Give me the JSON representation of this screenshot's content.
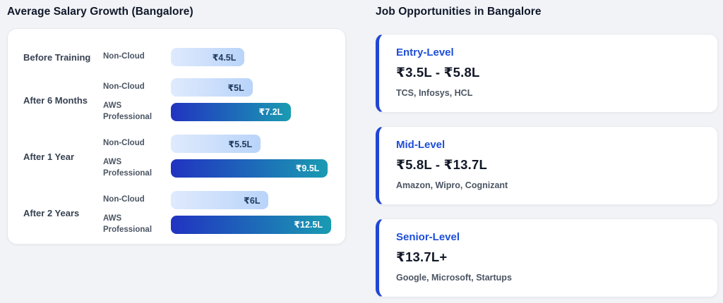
{
  "left": {
    "title": "Average Salary Growth (Bangalore)"
  },
  "right": {
    "title": "Job Opportunities in Bangalore",
    "accent_color": "#1d4ed8",
    "cards": [
      {
        "level": "Entry-Level",
        "range": "₹3.5L - ₹5.8L",
        "companies": "TCS, Infosys, HCL"
      },
      {
        "level": "Mid-Level",
        "range": "₹5.8L - ₹13.7L",
        "companies": "Amazon, Wipro, Cognizant"
      },
      {
        "level": "Senior-Level",
        "range": "₹13.7L+",
        "companies": "Google, Microsoft, Startups"
      }
    ]
  },
  "chart_data": {
    "type": "bar",
    "orientation": "horizontal",
    "title": "Average Salary Growth (Bangalore)",
    "unit": "INR lakh per annum",
    "series_names": [
      "Non-Cloud",
      "AWS Professional"
    ],
    "legend": "none",
    "grid": false,
    "groups": [
      {
        "label": "Before Training",
        "bars": [
          {
            "series": "Non-Cloud",
            "value": 4.5,
            "value_label": "₹4.5L",
            "width_pct": 46,
            "variant": "noncloud"
          }
        ]
      },
      {
        "label": "After 6 Months",
        "bars": [
          {
            "series": "Non-Cloud",
            "value": 5.0,
            "value_label": "₹5L",
            "width_pct": 51,
            "variant": "noncloud"
          },
          {
            "series": "AWS Professional",
            "value": 7.2,
            "value_label": "₹7.2L",
            "width_pct": 75,
            "variant": "aws"
          }
        ]
      },
      {
        "label": "After 1 Year",
        "bars": [
          {
            "series": "Non-Cloud",
            "value": 5.5,
            "value_label": "₹5.5L",
            "width_pct": 56,
            "variant": "noncloud"
          },
          {
            "series": "AWS Professional",
            "value": 9.5,
            "value_label": "₹9.5L",
            "width_pct": 98,
            "variant": "aws"
          }
        ]
      },
      {
        "label": "After 2 Years",
        "bars": [
          {
            "series": "Non-Cloud",
            "value": 6.0,
            "value_label": "₹6L",
            "width_pct": 61,
            "variant": "noncloud"
          },
          {
            "series": "AWS Professional",
            "value": 12.5,
            "value_label": "₹12.5L",
            "width_pct": 100,
            "variant": "aws"
          }
        ]
      }
    ],
    "colors": {
      "non_cloud_gradient_start": "#dfeafd",
      "non_cloud_gradient_end": "#b9d4fa",
      "non_cloud_text": "#1e3a5f",
      "aws_gradient_start": "#2133c1",
      "aws_gradient_end": "#1a9bb1",
      "aws_text": "#ffffff"
    }
  }
}
